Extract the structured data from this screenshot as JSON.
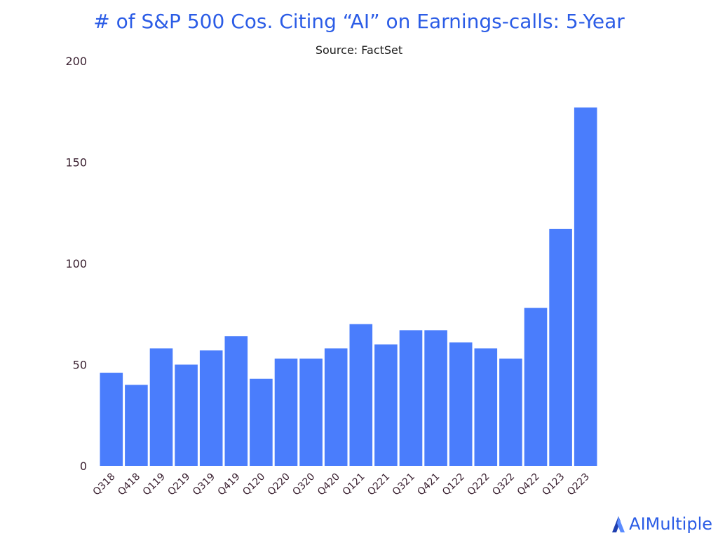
{
  "chart_data": {
    "type": "bar",
    "title": "# of S&P 500 Cos. Citing “AI” on Earnings-calls: 5-Year",
    "subtitle": "Source: FactSet",
    "xlabel": "",
    "ylabel": "",
    "categories": [
      "Q318",
      "Q418",
      "Q119",
      "Q219",
      "Q319",
      "Q419",
      "Q120",
      "Q220",
      "Q320",
      "Q420",
      "Q121",
      "Q221",
      "Q321",
      "Q421",
      "Q122",
      "Q222",
      "Q322",
      "Q422",
      "Q123",
      "Q223"
    ],
    "values": [
      46,
      40,
      58,
      50,
      57,
      64,
      43,
      53,
      53,
      58,
      70,
      60,
      67,
      67,
      61,
      58,
      53,
      78,
      117,
      177
    ],
    "ylim": [
      0,
      200
    ],
    "yticks": [
      0,
      50,
      100,
      150,
      200
    ],
    "grid": false,
    "bar_color": "#4a7dfc"
  },
  "logo": {
    "text": "AIMultiple",
    "icon": "aimultiple-logo-icon",
    "color": "#2b5ce6"
  }
}
